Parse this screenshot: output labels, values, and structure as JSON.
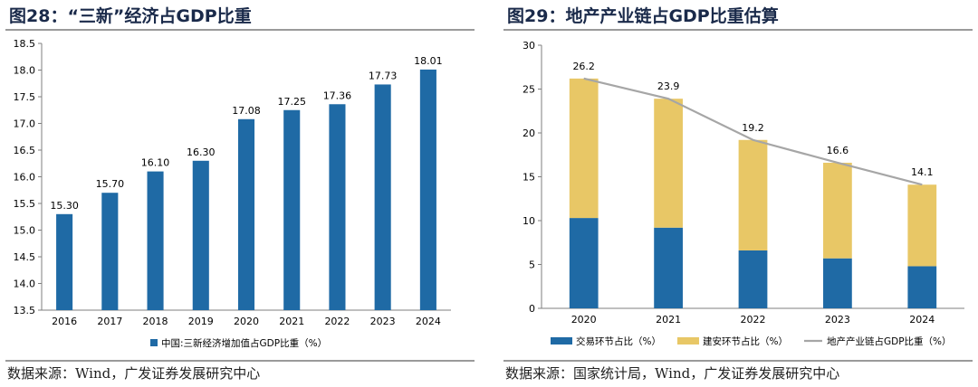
{
  "panels": {
    "left": {
      "title": "图28：“三新”经济占GDP比重",
      "source": "数据来源：Wind，广发证券发展研究中心"
    },
    "right": {
      "title": "图29：地产产业链占GDP比重估算",
      "source": "数据来源：国家统计局，Wind，广发证券发展研究中心"
    }
  },
  "chart_data": [
    {
      "type": "bar",
      "categories": [
        "2016",
        "2017",
        "2018",
        "2019",
        "2020",
        "2021",
        "2022",
        "2023",
        "2024"
      ],
      "series": [
        {
          "name": "中国:三新经济增加值占GDP比重（%）",
          "values": [
            15.3,
            15.7,
            16.1,
            16.3,
            17.08,
            17.25,
            17.36,
            17.73,
            18.01
          ],
          "labels": [
            "15.30",
            "15.70",
            "16.10",
            "16.30",
            "17.08",
            "17.25",
            "17.36",
            "17.73",
            "18.01"
          ],
          "color": "#1f6aa5"
        }
      ],
      "ylim": [
        13.5,
        18.5
      ],
      "yticks": [
        "13.5",
        "14.0",
        "14.5",
        "15.0",
        "15.5",
        "16.0",
        "16.5",
        "17.0",
        "17.5",
        "18.0",
        "18.5"
      ],
      "legend_position": "bottom",
      "grid": false
    },
    {
      "type": "bar",
      "stacked": true,
      "categories": [
        "2020",
        "2021",
        "2022",
        "2023",
        "2024"
      ],
      "series": [
        {
          "name": "交易环节占比（%）",
          "values": [
            10.3,
            9.2,
            6.6,
            5.7,
            4.8
          ],
          "color": "#1f6aa5"
        },
        {
          "name": "建安环节占比（%）",
          "values": [
            15.9,
            14.7,
            12.6,
            10.9,
            9.3
          ],
          "color": "#e8c766"
        },
        {
          "name": "地产产业链占GDP比重（%）",
          "type": "line",
          "values": [
            26.2,
            23.9,
            19.2,
            16.6,
            14.1
          ],
          "labels": [
            "26.2",
            "23.9",
            "19.2",
            "16.6",
            "14.1"
          ],
          "color": "#a6a6a6"
        }
      ],
      "ylim": [
        0,
        30
      ],
      "yticks": [
        "0",
        "5",
        "10",
        "15",
        "20",
        "25",
        "30"
      ],
      "legend_position": "bottom",
      "grid": false
    }
  ]
}
